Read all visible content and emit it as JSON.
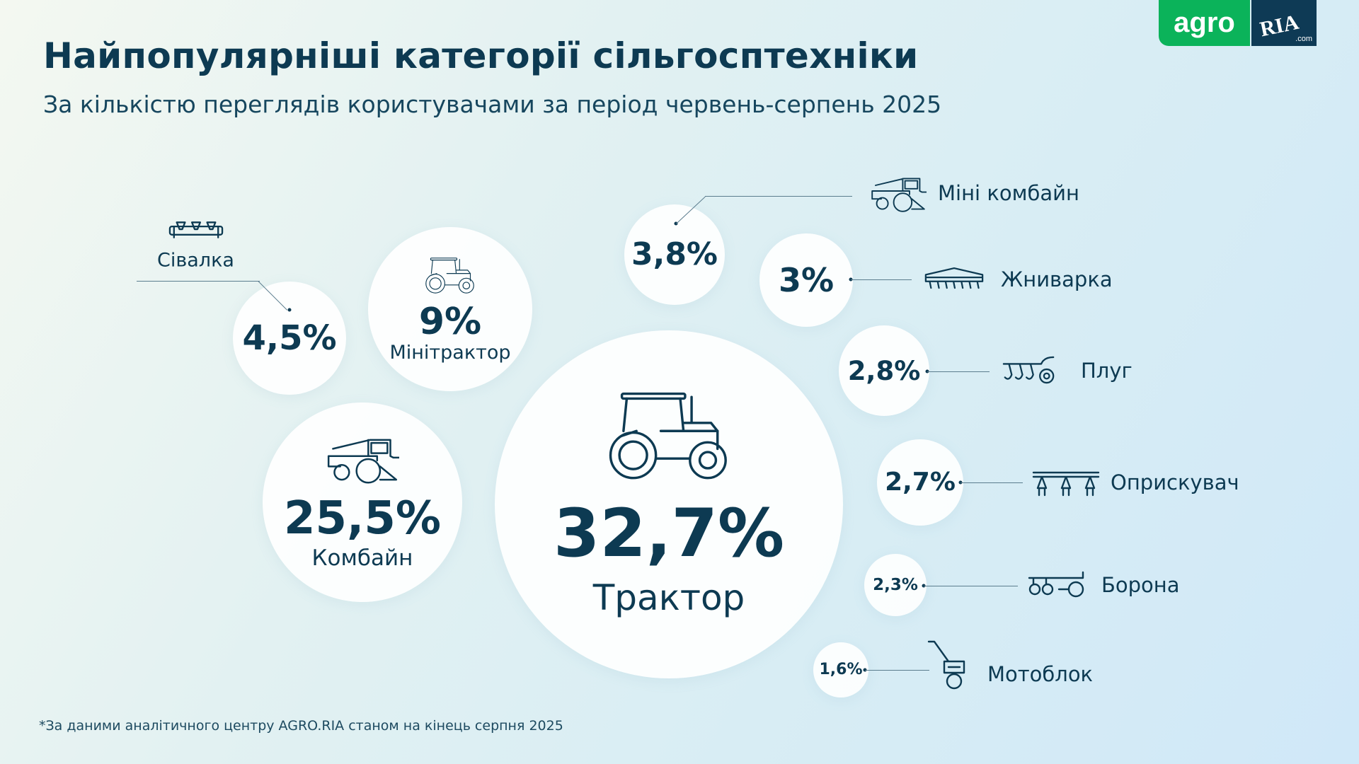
{
  "header": {
    "title": "Найпопулярніші категорії сільгосптехніки",
    "subtitle": "За кількістю переглядів користувачами за період червень-серпень 2025"
  },
  "logo": {
    "agro": "agro",
    "ria": "RIA",
    ".com": ".com",
    "colors": {
      "agro": "#0bb35a",
      "ria": "#0e3a55"
    }
  },
  "footer": "*За даними аналітичного центру AGRO.RIA станом на кінець серпня 2025",
  "chart_data": {
    "type": "bubble",
    "categories": [
      "Трактор",
      "Комбайн",
      "Мінітрактор",
      "Сівалка",
      "Міні комбайн",
      "Жниварка",
      "Плуг",
      "Оприскувач",
      "Борона",
      "Мотоблок"
    ],
    "values": [
      32.7,
      25.5,
      9,
      4.5,
      3.8,
      3,
      2.8,
      2.7,
      2.3,
      1.6
    ],
    "value_labels": [
      "32,7%",
      "25,5%",
      "9%",
      "4,5%",
      "3,8%",
      "3%",
      "2,8%",
      "2,7%",
      "2,3%",
      "1,6%"
    ],
    "icons": [
      "tractor-icon",
      "combine-icon",
      "mini-tractor-icon",
      "seeder-icon",
      "mini-combine-icon",
      "header-icon",
      "plow-icon",
      "sprayer-icon",
      "harrow-icon",
      "walk-behind-tractor-icon"
    ]
  },
  "colors": {
    "text": "#0d3a52",
    "bubble": "#ffffff"
  }
}
